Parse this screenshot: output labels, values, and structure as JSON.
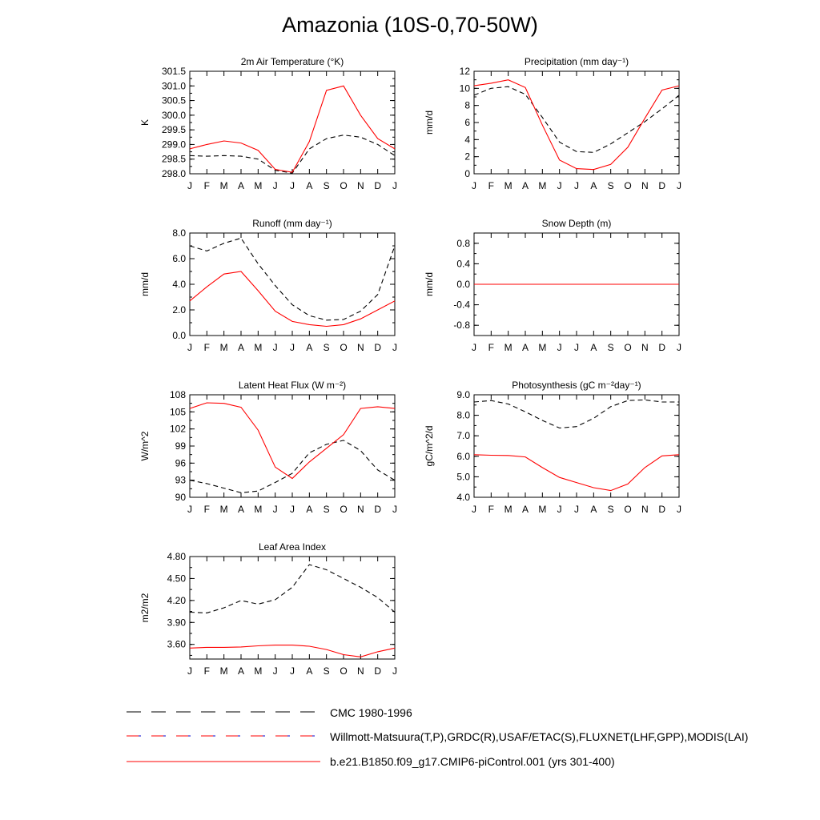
{
  "title": "Amazonia (10S-0,70-50W)",
  "colors": {
    "model": "#ff0000",
    "reference": "#000000",
    "obs_blue": "#0000cc"
  },
  "legend": {
    "cmc": "CMC 1980-1996",
    "obs": "Willmott-Matsuura(T,P),GRDC(R),USAF/ETAC(S),FLUXNET(LHF,GPP),MODIS(LAI)",
    "model": "b.e21.B1850.f09_g17.CMIP6-piControl.001 (yrs 301-400)"
  },
  "chart_data": [
    {
      "type": "line",
      "title": "2m Air Temperature (°K)",
      "xlabel": "",
      "ylabel": "K",
      "categories": [
        "J",
        "F",
        "M",
        "A",
        "M",
        "J",
        "J",
        "A",
        "S",
        "O",
        "N",
        "D",
        "J"
      ],
      "ylim": [
        298.0,
        301.5
      ],
      "yticks": [
        "298.0",
        "298.5",
        "299.0",
        "299.5",
        "300.0",
        "300.5",
        "301.0",
        "301.5"
      ],
      "series": [
        {
          "name": "b.e21.B1850.f09_g17.CMIP6-piControl.001 (yrs 301-400)",
          "style": "solid",
          "values": [
            298.85,
            299.0,
            299.12,
            299.05,
            298.8,
            298.15,
            298.05,
            299.1,
            300.85,
            301.0,
            300.0,
            299.2,
            298.85
          ]
        },
        {
          "name": "CMC 1980-1996",
          "style": "dashed",
          "values": [
            298.62,
            298.6,
            298.62,
            298.6,
            298.5,
            298.12,
            298.02,
            298.85,
            299.2,
            299.32,
            299.25,
            299.0,
            298.62
          ]
        }
      ]
    },
    {
      "type": "line",
      "title": "Precipitation (mm day⁻¹)",
      "xlabel": "",
      "ylabel": "mm/d",
      "categories": [
        "J",
        "F",
        "M",
        "A",
        "M",
        "J",
        "J",
        "A",
        "S",
        "O",
        "N",
        "D",
        "J"
      ],
      "ylim": [
        0,
        12
      ],
      "yticks": [
        "0",
        "2",
        "4",
        "6",
        "8",
        "10",
        "12"
      ],
      "series": [
        {
          "name": "b.e21.B1850.f09_g17.CMIP6-piControl.001 (yrs 301-400)",
          "style": "solid",
          "values": [
            10.3,
            10.6,
            11.0,
            10.1,
            5.7,
            1.6,
            0.6,
            0.5,
            1.1,
            3.1,
            6.5,
            9.8,
            10.3
          ]
        },
        {
          "name": "CMC 1980-1996",
          "style": "dashed",
          "values": [
            9.2,
            10.0,
            10.2,
            9.3,
            6.6,
            3.7,
            2.6,
            2.5,
            3.5,
            4.8,
            6.1,
            7.6,
            9.2
          ]
        }
      ]
    },
    {
      "type": "line",
      "title": "Runoff (mm day⁻¹)",
      "xlabel": "",
      "ylabel": "mm/d",
      "categories": [
        "J",
        "F",
        "M",
        "A",
        "M",
        "J",
        "J",
        "A",
        "S",
        "O",
        "N",
        "D",
        "J"
      ],
      "ylim": [
        0.0,
        8.0
      ],
      "yticks": [
        "0.0",
        "2.0",
        "4.0",
        "6.0",
        "8.0"
      ],
      "series": [
        {
          "name": "b.e21.B1850.f09_g17.CMIP6-piControl.001 (yrs 301-400)",
          "style": "solid",
          "values": [
            2.7,
            3.8,
            4.8,
            5.0,
            3.5,
            1.9,
            1.1,
            0.85,
            0.72,
            0.85,
            1.3,
            2.0,
            2.7
          ]
        },
        {
          "name": "CMC 1980-1996",
          "style": "dashed",
          "values": [
            7.0,
            6.6,
            7.2,
            7.6,
            5.6,
            3.9,
            2.4,
            1.55,
            1.2,
            1.25,
            1.9,
            3.2,
            7.0
          ]
        }
      ]
    },
    {
      "type": "line",
      "title": "Snow Depth (m)",
      "xlabel": "",
      "ylabel": "mm/d",
      "categories": [
        "J",
        "F",
        "M",
        "A",
        "M",
        "J",
        "J",
        "A",
        "S",
        "O",
        "N",
        "D",
        "J"
      ],
      "ylim": [
        -1.0,
        1.0
      ],
      "yticks": [
        "-0.8",
        "-0.4",
        "0.0",
        "0.4",
        "0.8"
      ],
      "ytick_values": [
        -0.8,
        -0.4,
        0.0,
        0.4,
        0.8
      ],
      "series": [
        {
          "name": "b.e21.B1850.f09_g17.CMIP6-piControl.001 (yrs 301-400)",
          "style": "solid",
          "values": [
            0,
            0,
            0,
            0,
            0,
            0,
            0,
            0,
            0,
            0,
            0,
            0,
            0
          ]
        },
        {
          "name": "Willmott-Matsuura(T,P),GRDC(R),USAF/ETAC(S),FLUXNET(LHF,GPP),MODIS(LAI)",
          "style": "dashed",
          "values": [
            0,
            0,
            0,
            0,
            0,
            0,
            0,
            0,
            0,
            0,
            0,
            0,
            0
          ]
        }
      ]
    },
    {
      "type": "line",
      "title": "Latent Heat Flux (W m⁻²)",
      "xlabel": "",
      "ylabel": "W/m^2",
      "categories": [
        "J",
        "F",
        "M",
        "A",
        "M",
        "J",
        "J",
        "A",
        "S",
        "O",
        "N",
        "D",
        "J"
      ],
      "ylim": [
        90,
        108
      ],
      "yticks": [
        "90",
        "93",
        "96",
        "99",
        "102",
        "105",
        "108"
      ],
      "series": [
        {
          "name": "b.e21.B1850.f09_g17.CMIP6-piControl.001 (yrs 301-400)",
          "style": "solid",
          "values": [
            105.6,
            106.6,
            106.5,
            105.8,
            101.8,
            95.3,
            93.3,
            96.2,
            98.6,
            101.0,
            105.6,
            105.9,
            105.6
          ]
        },
        {
          "name": "CMC 1980-1996",
          "style": "dashed",
          "values": [
            93.0,
            92.4,
            91.6,
            90.8,
            91.1,
            92.6,
            94.2,
            97.8,
            99.3,
            100.0,
            98.2,
            94.8,
            93.0
          ]
        }
      ]
    },
    {
      "type": "line",
      "title": "Photosynthesis (gC m⁻²day⁻¹)",
      "xlabel": "",
      "ylabel": "gC/m^2/d",
      "categories": [
        "J",
        "F",
        "M",
        "A",
        "M",
        "J",
        "J",
        "A",
        "S",
        "O",
        "N",
        "D",
        "J"
      ],
      "ylim": [
        4.0,
        9.0
      ],
      "yticks": [
        "4.0",
        "5.0",
        "6.0",
        "7.0",
        "8.0",
        "9.0"
      ],
      "series": [
        {
          "name": "b.e21.B1850.f09_g17.CMIP6-piControl.001 (yrs 301-400)",
          "style": "solid",
          "values": [
            6.08,
            6.05,
            6.04,
            5.97,
            5.45,
            4.97,
            4.72,
            4.47,
            4.33,
            4.65,
            5.45,
            6.02,
            6.08
          ]
        },
        {
          "name": "CMC 1980-1996",
          "style": "dashed",
          "values": [
            8.65,
            8.72,
            8.55,
            8.17,
            7.75,
            7.38,
            7.45,
            7.85,
            8.42,
            8.72,
            8.75,
            8.65,
            8.65
          ]
        }
      ]
    },
    {
      "type": "line",
      "title": "Leaf Area Index",
      "xlabel": "",
      "ylabel": "m2/m2",
      "categories": [
        "J",
        "F",
        "M",
        "A",
        "M",
        "J",
        "J",
        "A",
        "S",
        "O",
        "N",
        "D",
        "J"
      ],
      "ylim": [
        3.4,
        4.8
      ],
      "yticks": [
        "3.60",
        "3.90",
        "4.20",
        "4.50",
        "4.80"
      ],
      "ytick_values": [
        3.6,
        3.9,
        4.2,
        4.5,
        4.8
      ],
      "series": [
        {
          "name": "b.e21.B1850.f09_g17.CMIP6-piControl.001 (yrs 301-400)",
          "style": "solid",
          "values": [
            3.55,
            3.56,
            3.56,
            3.565,
            3.58,
            3.59,
            3.59,
            3.575,
            3.53,
            3.46,
            3.43,
            3.5,
            3.55
          ]
        },
        {
          "name": "CMC 1980-1996",
          "style": "dashed",
          "values": [
            4.04,
            4.03,
            4.1,
            4.2,
            4.15,
            4.21,
            4.38,
            4.69,
            4.62,
            4.5,
            4.38,
            4.24,
            4.04
          ]
        }
      ]
    }
  ]
}
